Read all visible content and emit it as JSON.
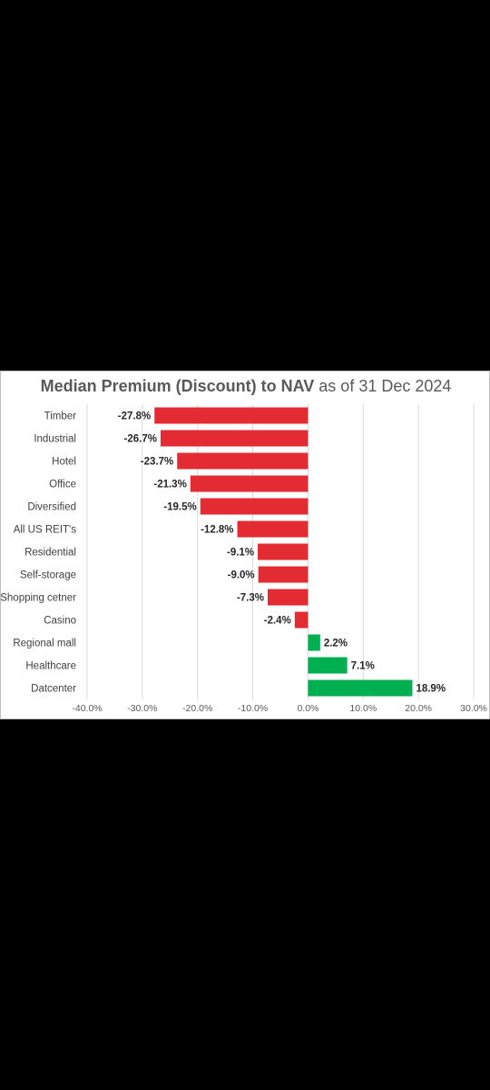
{
  "chart_data": {
    "type": "bar",
    "orientation": "horizontal",
    "title_bold": "Median Premium (Discount) to NAV",
    "title_rest": "as of 31 Dec 2024",
    "categories": [
      "Timber",
      "Industrial",
      "Hotel",
      "Office",
      "Diversified",
      "All US REIT's",
      "Residential",
      "Self-storage",
      "Shopping cetner",
      "Casino",
      "Regional mall",
      "Healthcare",
      "Datcenter"
    ],
    "values": [
      -27.8,
      -26.7,
      -23.7,
      -21.3,
      -19.5,
      -12.8,
      -9.1,
      -9.0,
      -7.3,
      -2.4,
      2.2,
      7.1,
      18.9
    ],
    "value_labels": [
      "-27.8%",
      "-26.7%",
      "-23.7%",
      "-21.3%",
      "-19.5%",
      "-12.8%",
      "-9.1%",
      "-9.0%",
      "-7.3%",
      "-2.4%",
      "2.2%",
      "7.1%",
      "18.9%"
    ],
    "xlim": [
      -40,
      30
    ],
    "x_ticks": [
      -40,
      -30,
      -20,
      -10,
      0,
      10,
      20,
      30
    ],
    "x_tick_labels": [
      "-40.0%",
      "-30.0%",
      "-20.0%",
      "-10.0%",
      "0.0%",
      "10.0%",
      "20.0%",
      "30.0%"
    ],
    "xlabel": "",
    "ylabel": "",
    "grid": true,
    "legend": "none",
    "colors": {
      "negative": "#e32b33",
      "positive": "#00b050",
      "grid": "#d9d9d9"
    }
  }
}
